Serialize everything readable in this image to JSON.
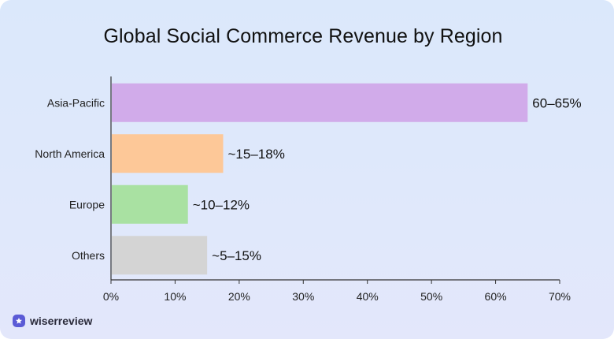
{
  "chart_data": {
    "type": "bar",
    "orientation": "horizontal",
    "title": "Global Social Commerce Revenue by Region",
    "xlabel": "",
    "ylabel": "",
    "categories": [
      "Asia-Pacific",
      "North America",
      "Europe",
      "Others"
    ],
    "values": [
      65,
      17.5,
      12,
      15
    ],
    "value_labels": [
      "60–65%",
      "~15–18%",
      "~10–12%",
      "~5–15%"
    ],
    "colors": [
      "#d1abea",
      "#fdc898",
      "#a9e1a2",
      "#d4d4d4"
    ],
    "xlim": [
      0,
      70
    ],
    "xticks": [
      0,
      10,
      20,
      30,
      40,
      50,
      60,
      70
    ],
    "tick_suffix": "%",
    "grid": false
  },
  "brand": {
    "name": "wiserreview",
    "icon": "star-badge-icon"
  }
}
